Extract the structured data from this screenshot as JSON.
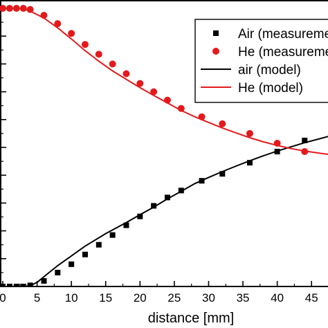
{
  "chart_data": {
    "type": "scatter",
    "xlabel": "distance [mm]",
    "ylabel": "",
    "xlim": [
      0,
      47.5
    ],
    "ylim": [
      0,
      1.03
    ],
    "x_ticks": [
      0,
      5,
      10,
      15,
      20,
      25,
      30,
      35,
      40,
      45
    ],
    "legend_position": "top-right",
    "series": [
      {
        "name": "Air (measurement)",
        "kind": "points",
        "marker": "square",
        "color": "#000000",
        "points": [
          [
            0,
            0.0
          ],
          [
            1,
            0.0
          ],
          [
            2,
            0.0
          ],
          [
            3,
            0.0
          ],
          [
            4,
            0.004
          ],
          [
            6,
            0.02
          ],
          [
            8,
            0.05
          ],
          [
            10,
            0.08
          ],
          [
            12,
            0.115
          ],
          [
            14,
            0.15
          ],
          [
            16,
            0.185
          ],
          [
            18,
            0.22
          ],
          [
            20,
            0.252
          ],
          [
            22,
            0.29
          ],
          [
            24,
            0.32
          ],
          [
            26,
            0.345
          ],
          [
            29,
            0.38
          ],
          [
            32,
            0.405
          ],
          [
            36,
            0.445
          ],
          [
            40,
            0.485
          ],
          [
            44,
            0.525
          ]
        ]
      },
      {
        "name": "He (measurement)",
        "kind": "points",
        "marker": "circle",
        "color": "#e31a1c",
        "points": [
          [
            0,
            1.0
          ],
          [
            1,
            1.0
          ],
          [
            2,
            1.0
          ],
          [
            3,
            1.0
          ],
          [
            4,
            0.996
          ],
          [
            6,
            0.975
          ],
          [
            8,
            0.945
          ],
          [
            10,
            0.91
          ],
          [
            12,
            0.87
          ],
          [
            14,
            0.835
          ],
          [
            16,
            0.8
          ],
          [
            18,
            0.765
          ],
          [
            20,
            0.73
          ],
          [
            22,
            0.7
          ],
          [
            24,
            0.67
          ],
          [
            26,
            0.64
          ],
          [
            29,
            0.61
          ],
          [
            32,
            0.585
          ],
          [
            36,
            0.55
          ],
          [
            40,
            0.515
          ],
          [
            44,
            0.485
          ]
        ]
      },
      {
        "name": "air (model)",
        "kind": "line",
        "color": "#000000",
        "points": [
          [
            0,
            0.0
          ],
          [
            3,
            0.0
          ],
          [
            4,
            0.003
          ],
          [
            5,
            0.015
          ],
          [
            6,
            0.035
          ],
          [
            8,
            0.075
          ],
          [
            10,
            0.11
          ],
          [
            12,
            0.145
          ],
          [
            15,
            0.19
          ],
          [
            18,
            0.23
          ],
          [
            20,
            0.258
          ],
          [
            22,
            0.285
          ],
          [
            24,
            0.315
          ],
          [
            26,
            0.342
          ],
          [
            28,
            0.37
          ],
          [
            30,
            0.392
          ],
          [
            32,
            0.413
          ],
          [
            34,
            0.433
          ],
          [
            36,
            0.452
          ],
          [
            38,
            0.47
          ],
          [
            40,
            0.487
          ],
          [
            42,
            0.502
          ],
          [
            44,
            0.517
          ],
          [
            46,
            0.53
          ],
          [
            47.5,
            0.54
          ]
        ]
      },
      {
        "name": "He (model)",
        "kind": "line",
        "color": "#e31a1c",
        "points": [
          [
            0,
            1.0
          ],
          [
            2,
            1.0
          ],
          [
            3,
            0.998
          ],
          [
            4,
            0.99
          ],
          [
            6,
            0.965
          ],
          [
            8,
            0.93
          ],
          [
            10,
            0.89
          ],
          [
            12,
            0.848
          ],
          [
            14,
            0.81
          ],
          [
            16,
            0.775
          ],
          [
            18,
            0.745
          ],
          [
            20,
            0.715
          ],
          [
            22,
            0.687
          ],
          [
            24,
            0.66
          ],
          [
            26,
            0.633
          ],
          [
            28,
            0.61
          ],
          [
            30,
            0.59
          ],
          [
            32,
            0.57
          ],
          [
            34,
            0.552
          ],
          [
            36,
            0.535
          ],
          [
            38,
            0.52
          ],
          [
            40,
            0.507
          ],
          [
            42,
            0.496
          ],
          [
            44,
            0.487
          ],
          [
            46,
            0.48
          ],
          [
            47.5,
            0.475
          ]
        ]
      }
    ]
  }
}
